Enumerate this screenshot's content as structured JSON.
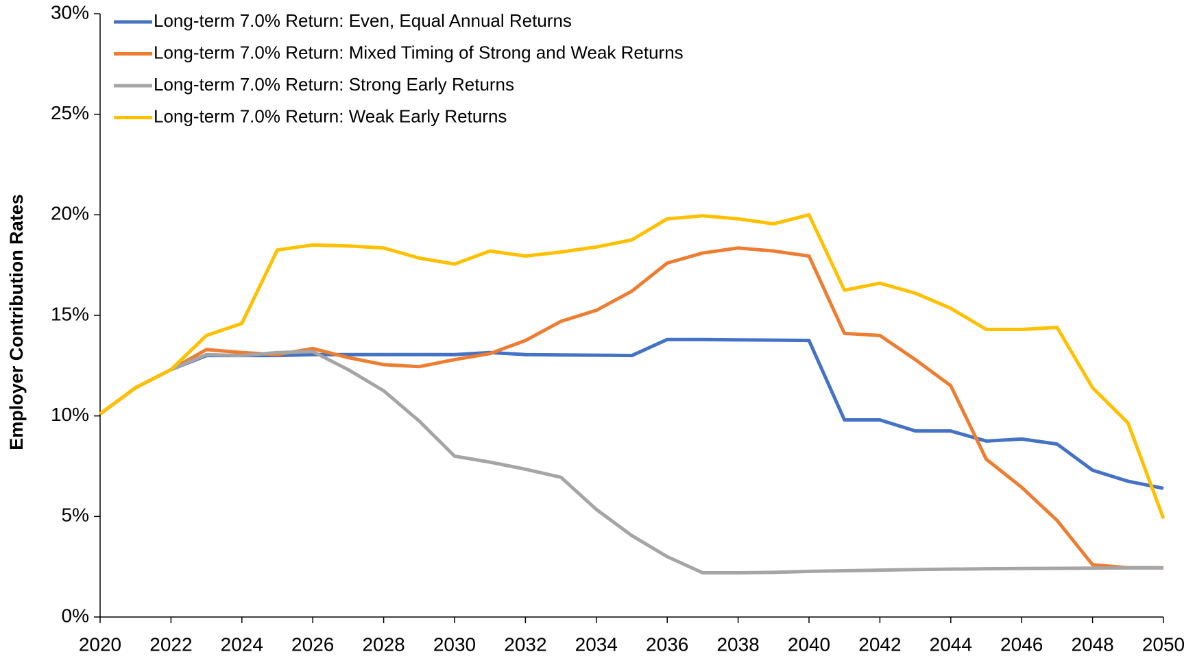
{
  "chart_data": {
    "type": "line",
    "y_label": "Employer Contribution Rates",
    "x": [
      2020,
      2021,
      2022,
      2023,
      2024,
      2025,
      2026,
      2027,
      2028,
      2029,
      2030,
      2031,
      2032,
      2033,
      2034,
      2035,
      2036,
      2037,
      2038,
      2039,
      2040,
      2041,
      2042,
      2043,
      2044,
      2045,
      2046,
      2047,
      2048,
      2049,
      2050
    ],
    "xlim": [
      2020,
      2050
    ],
    "xticks": [
      2020,
      2022,
      2024,
      2026,
      2028,
      2030,
      2032,
      2034,
      2036,
      2038,
      2040,
      2042,
      2044,
      2046,
      2048,
      2050
    ],
    "ylim": [
      0,
      30
    ],
    "yticks": [
      {
        "value": 0,
        "label": "0%"
      },
      {
        "value": 5,
        "label": "5%"
      },
      {
        "value": 10,
        "label": "10%"
      },
      {
        "value": 15,
        "label": "15%"
      },
      {
        "value": 20,
        "label": "20%"
      },
      {
        "value": 25,
        "label": "25%"
      },
      {
        "value": 30,
        "label": "30%"
      }
    ],
    "grid": false,
    "legend": "top-left",
    "series": [
      {
        "name": "Long-term 7.0% Return: Even, Equal Annual Returns",
        "color": "#4472c4",
        "values": [
          10.1,
          11.4,
          12.3,
          13.0,
          13.0,
          13.0,
          13.05,
          13.05,
          13.05,
          13.05,
          13.05,
          13.15,
          13.05,
          13.03,
          13.02,
          13.0,
          13.8,
          13.8,
          13.78,
          13.77,
          13.75,
          9.8,
          9.8,
          9.25,
          9.25,
          8.75,
          8.85,
          8.6,
          7.3,
          6.75,
          6.4
        ]
      },
      {
        "name": "Long-term 7.0% Return: Mixed Timing of Strong and Weak Returns",
        "color": "#ed7d31",
        "values": [
          10.1,
          11.4,
          12.3,
          13.3,
          13.15,
          13.05,
          13.35,
          12.9,
          12.55,
          12.45,
          12.8,
          13.1,
          13.75,
          14.7,
          15.25,
          16.2,
          17.6,
          18.1,
          18.35,
          18.2,
          17.95,
          14.1,
          14.0,
          12.8,
          11.5,
          7.85,
          6.45,
          4.8,
          2.6,
          2.45,
          2.45
        ]
      },
      {
        "name": "Long-term 7.0% Return: Strong Early Returns",
        "color": "#a5a5a5",
        "values": [
          10.1,
          11.4,
          12.3,
          13.05,
          13.0,
          13.15,
          13.2,
          12.3,
          11.25,
          9.75,
          8.0,
          7.7,
          7.35,
          6.95,
          5.35,
          4.05,
          3.0,
          2.2,
          2.2,
          2.22,
          2.27,
          2.3,
          2.33,
          2.36,
          2.38,
          2.4,
          2.41,
          2.42,
          2.43,
          2.44,
          2.44
        ]
      },
      {
        "name": "Long-term 7.0% Return: Weak Early Returns",
        "color": "#ffc000",
        "values": [
          10.1,
          11.4,
          12.3,
          14.0,
          14.6,
          18.25,
          18.5,
          18.45,
          18.35,
          17.85,
          17.55,
          18.2,
          17.95,
          18.15,
          18.4,
          18.75,
          19.8,
          19.95,
          19.8,
          19.55,
          20.0,
          16.25,
          16.6,
          16.1,
          15.35,
          14.3,
          14.3,
          14.4,
          11.4,
          9.65,
          4.9
        ]
      }
    ]
  }
}
